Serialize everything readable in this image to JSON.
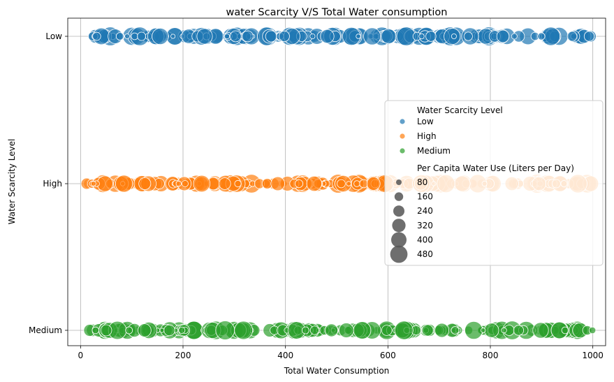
{
  "chart_data": {
    "type": "scatter",
    "title": "water Scarcity V/S Total Water consumption",
    "xlabel": "Total Water Consumption",
    "ylabel": "Water Scarcity Level",
    "xlim": [
      -25,
      1025
    ],
    "xticks": [
      0,
      200,
      400,
      600,
      800,
      1000
    ],
    "categories": [
      "Low",
      "High",
      "Medium"
    ],
    "grid": true,
    "legend": {
      "placement": "center-right",
      "hue_title": "Water Scarcity Level",
      "hue_entries": [
        {
          "label": "Low",
          "color": "#1f77b4"
        },
        {
          "label": "High",
          "color": "#ff7f0e"
        },
        {
          "label": "Medium",
          "color": "#2ca02c"
        }
      ],
      "size_title": "Per Capita Water Use (Liters per Day)",
      "size_entries": [
        "80",
        "160",
        "240",
        "320",
        "400",
        "480"
      ]
    },
    "series": [
      {
        "name": "Low",
        "color": "#1f77b4",
        "x_range": [
          15,
          1000
        ],
        "per_capita_range": [
          50,
          500
        ]
      },
      {
        "name": "High",
        "color": "#ff7f0e",
        "x_range": [
          10,
          1000
        ],
        "per_capita_range": [
          50,
          500
        ]
      },
      {
        "name": "Medium",
        "color": "#2ca02c",
        "x_range": [
          15,
          1000
        ],
        "per_capita_range": [
          50,
          500
        ]
      }
    ]
  }
}
